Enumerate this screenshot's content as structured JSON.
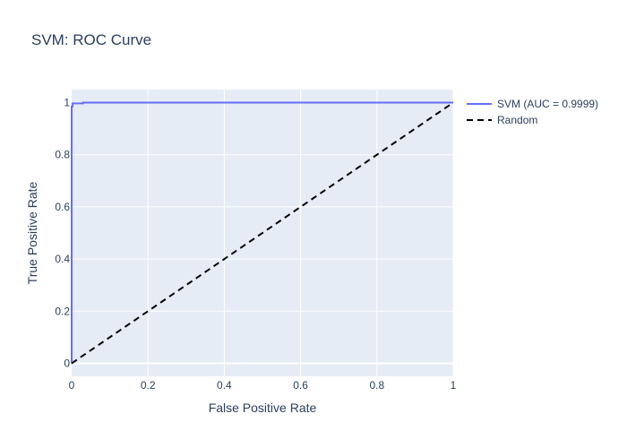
{
  "chart_data": {
    "type": "line",
    "title": "SVM: ROC Curve",
    "xlabel": "False Positive Rate",
    "ylabel": "True Positive Rate",
    "xlim": [
      0,
      1
    ],
    "ylim": [
      -0.05,
      1.05
    ],
    "x_ticks": [
      "0",
      "0.2",
      "0.4",
      "0.6",
      "0.8",
      "1"
    ],
    "y_ticks": [
      "0",
      "0.2",
      "0.4",
      "0.6",
      "0.8",
      "1"
    ],
    "grid": true,
    "legend_position": "top-right-outside",
    "series": [
      {
        "name": "SVM (AUC = 0.9999)",
        "color": "#636efa",
        "dash": "solid",
        "x": [
          0,
          0,
          0.002,
          0.002,
          0.03,
          0.03,
          1
        ],
        "y": [
          0,
          0.985,
          0.985,
          0.997,
          0.997,
          1,
          1
        ]
      },
      {
        "name": "Random",
        "color": "#000000",
        "dash": "dash",
        "x": [
          0,
          1
        ],
        "y": [
          0,
          1
        ]
      }
    ]
  }
}
